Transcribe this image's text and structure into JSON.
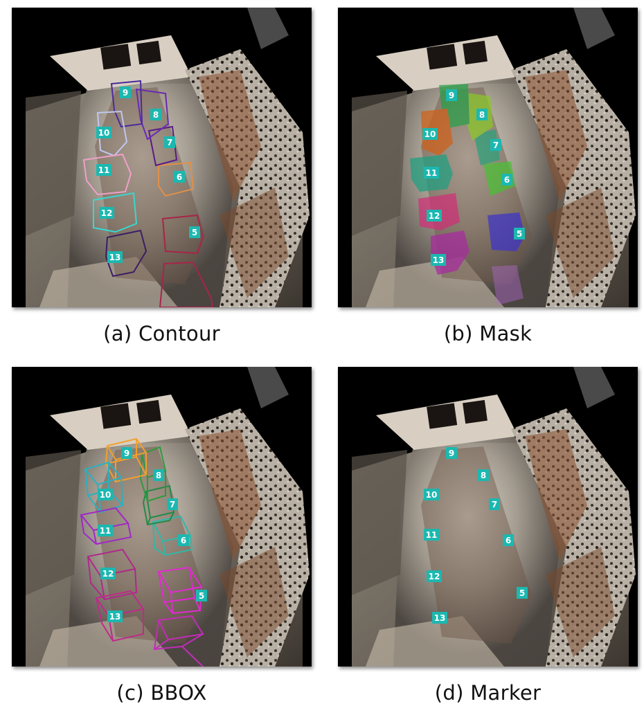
{
  "panels": [
    {
      "id": "a",
      "caption": "(a) Contour",
      "style": "contour"
    },
    {
      "id": "b",
      "caption": "(b) Mask",
      "style": "mask"
    },
    {
      "id": "c",
      "caption": "(c) BBOX",
      "style": "bbox"
    },
    {
      "id": "d",
      "caption": "(d) Marker",
      "style": "marker"
    }
  ],
  "objects": [
    {
      "id": "5",
      "color": "#a8244a",
      "mask_color": "#3e34c8",
      "bbox_color": "#e22ad0"
    },
    {
      "id": "6",
      "color": "#e0904a",
      "mask_color": "#49c034",
      "bbox_color": "#2fb8a8"
    },
    {
      "id": "7",
      "color": "#5a1a8a",
      "mask_color": "#2aa07a",
      "bbox_color": "#238a48"
    },
    {
      "id": "8",
      "color": "#6a2ab4",
      "mask_color": "#8ac828",
      "bbox_color": "#2e9a3c"
    },
    {
      "id": "9",
      "color": "#4a2a9a",
      "mask_color": "#28a048",
      "bbox_color": "#f0a030"
    },
    {
      "id": "10",
      "color": "#c0c8f0",
      "mask_color": "#d06018",
      "bbox_color": "#2ab0c0"
    },
    {
      "id": "11",
      "color": "#f0a0c8",
      "mask_color": "#1ea080",
      "bbox_color": "#a028c8"
    },
    {
      "id": "12",
      "color": "#38d8d0",
      "mask_color": "#d03078",
      "bbox_color": "#b0288a"
    },
    {
      "id": "13",
      "color": "#3a1e62",
      "mask_color": "#a82aa0",
      "bbox_color": "#c02a8a"
    }
  ]
}
